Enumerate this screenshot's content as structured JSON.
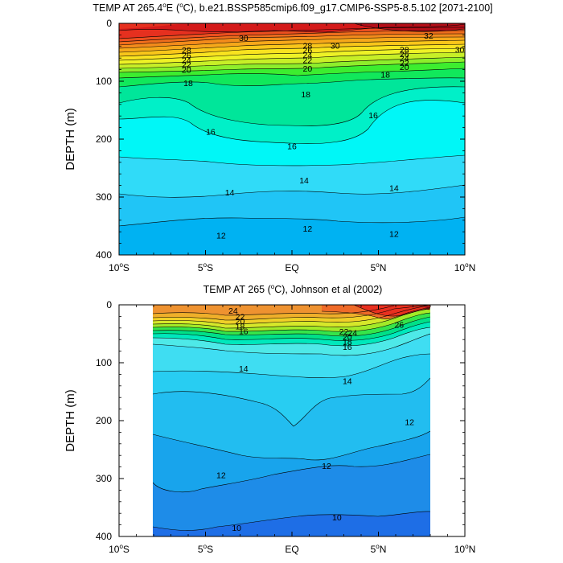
{
  "chart_data": [
    {
      "type": "contour",
      "title_main": "TEMP AT 265.4",
      "title_unit": "(",
      "title_unit2": "C), b.e21.BSSP585cmip6.f09_g17.CMIP6-SSP5-8.5.102 [2071-2100]",
      "deg_e": "E",
      "ylabel": "DEPTH (m)",
      "xlim": [
        -10,
        10
      ],
      "ylim": [
        0,
        400
      ],
      "x_ticks": [
        {
          "value": -10,
          "num": "10",
          "hemi": "S"
        },
        {
          "value": -5,
          "num": "5",
          "hemi": "S"
        },
        {
          "value": 0,
          "num": "EQ",
          "hemi": ""
        },
        {
          "value": 5,
          "num": "5",
          "hemi": "N"
        },
        {
          "value": 10,
          "num": "10",
          "hemi": "N"
        }
      ],
      "y_ticks": [
        "0",
        "100",
        "200",
        "300",
        "400"
      ],
      "data_x_range": [
        -10,
        10
      ],
      "contour_labels": [
        {
          "text": "30",
          "x": -2.8,
          "y": 25
        },
        {
          "text": "30",
          "x": 2.5,
          "y": 38
        },
        {
          "text": "32",
          "x": 7.9,
          "y": 21
        },
        {
          "text": "30",
          "x": 9.7,
          "y": 45
        },
        {
          "text": "28",
          "x": -6.1,
          "y": 46
        },
        {
          "text": "26",
          "x": -6.1,
          "y": 55
        },
        {
          "text": "24",
          "x": -6.1,
          "y": 63
        },
        {
          "text": "22",
          "x": -6.1,
          "y": 71
        },
        {
          "text": "20",
          "x": -6.1,
          "y": 80
        },
        {
          "text": "18",
          "x": -6.0,
          "y": 103
        },
        {
          "text": "28",
          "x": 0.9,
          "y": 38
        },
        {
          "text": "26",
          "x": 0.9,
          "y": 46
        },
        {
          "text": "24",
          "x": 0.9,
          "y": 54
        },
        {
          "text": "22",
          "x": 0.9,
          "y": 63
        },
        {
          "text": "20",
          "x": 0.9,
          "y": 78
        },
        {
          "text": "28",
          "x": 6.5,
          "y": 45
        },
        {
          "text": "26",
          "x": 6.5,
          "y": 53
        },
        {
          "text": "24",
          "x": 6.5,
          "y": 60
        },
        {
          "text": "22",
          "x": 6.5,
          "y": 68
        },
        {
          "text": "20",
          "x": 6.5,
          "y": 75
        },
        {
          "text": "18",
          "x": 5.4,
          "y": 88
        },
        {
          "text": "18",
          "x": 0.8,
          "y": 122
        },
        {
          "text": "16",
          "x": -4.7,
          "y": 187
        },
        {
          "text": "16",
          "x": 0.0,
          "y": 212
        },
        {
          "text": "16",
          "x": 4.7,
          "y": 158
        },
        {
          "text": "14",
          "x": -3.6,
          "y": 292
        },
        {
          "text": "14",
          "x": 0.7,
          "y": 271
        },
        {
          "text": "14",
          "x": 5.9,
          "y": 284
        },
        {
          "text": "12",
          "x": -4.1,
          "y": 366
        },
        {
          "text": "12",
          "x": 0.9,
          "y": 354
        },
        {
          "text": "12",
          "x": 5.9,
          "y": 363
        }
      ]
    },
    {
      "type": "contour",
      "title_main": "TEMP AT 265 (",
      "title_unit2": "C), Johnson et al (2002)",
      "ylabel": "DEPTH (m)",
      "xlim": [
        -10,
        10
      ],
      "ylim": [
        0,
        400
      ],
      "x_ticks": [
        {
          "value": -10,
          "num": "10",
          "hemi": "S"
        },
        {
          "value": -5,
          "num": "5",
          "hemi": "S"
        },
        {
          "value": 0,
          "num": "EQ",
          "hemi": ""
        },
        {
          "value": 5,
          "num": "5",
          "hemi": "N"
        },
        {
          "value": 10,
          "num": "10",
          "hemi": "N"
        }
      ],
      "y_ticks": [
        "0",
        "100",
        "200",
        "300",
        "400"
      ],
      "data_x_range": [
        -8,
        8.5
      ],
      "contour_labels": [
        {
          "text": "24",
          "x": -3.4,
          "y": 10
        },
        {
          "text": "22",
          "x": -3.0,
          "y": 20
        },
        {
          "text": "20",
          "x": -3.0,
          "y": 28
        },
        {
          "text": "18",
          "x": -3.0,
          "y": 37
        },
        {
          "text": "16",
          "x": -2.8,
          "y": 45
        },
        {
          "text": "22",
          "x": 3.0,
          "y": 46
        },
        {
          "text": "24",
          "x": 3.5,
          "y": 48
        },
        {
          "text": "20",
          "x": 3.2,
          "y": 55
        },
        {
          "text": "18",
          "x": 3.2,
          "y": 63
        },
        {
          "text": "16",
          "x": 3.2,
          "y": 72
        },
        {
          "text": "26",
          "x": 6.2,
          "y": 34
        },
        {
          "text": "14",
          "x": -2.8,
          "y": 110
        },
        {
          "text": "14",
          "x": 3.2,
          "y": 131
        },
        {
          "text": "12",
          "x": 6.8,
          "y": 202
        },
        {
          "text": "12",
          "x": 2.0,
          "y": 278
        },
        {
          "text": "12",
          "x": -4.1,
          "y": 294
        },
        {
          "text": "10",
          "x": -3.2,
          "y": 385
        },
        {
          "text": "10",
          "x": 2.6,
          "y": 367
        }
      ]
    }
  ]
}
